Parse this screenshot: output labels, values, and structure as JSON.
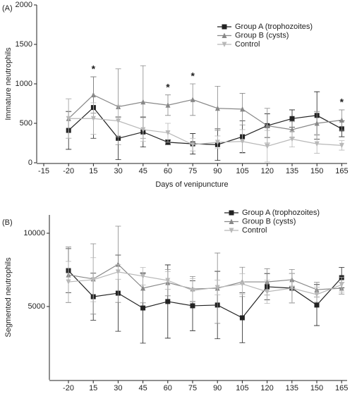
{
  "chart_data": [
    {
      "type": "line",
      "label": "(A)",
      "ylabel": "Immature neutrophils",
      "xlabel": "Days of venipuncture",
      "categories": [
        "-15",
        "-20",
        "15",
        "30",
        "45",
        "60",
        "75",
        "90",
        "105",
        "120",
        "135",
        "150",
        "165"
      ],
      "ylim": [
        0,
        2000
      ],
      "yticks": [
        0,
        500,
        1000,
        1500,
        2000
      ],
      "legend": "upper right",
      "series": [
        {
          "name": "Group A (trophozoites)",
          "color": "#222222",
          "marker": "square",
          "values": [
            null,
            410,
            700,
            310,
            390,
            260,
            240,
            230,
            330,
            470,
            560,
            600,
            430
          ],
          "errors": [
            null,
            240,
            390,
            270,
            190,
            30,
            130,
            200,
            200,
            150,
            110,
            300,
            100
          ]
        },
        {
          "name": "Group B (cysts)",
          "color": "#888888",
          "marker": "triangle",
          "values": [
            null,
            560,
            860,
            710,
            770,
            730,
            800,
            690,
            680,
            470,
            420,
            500,
            540
          ],
          "errors": [
            null,
            250,
            230,
            480,
            460,
            130,
            200,
            280,
            200,
            220,
            100,
            150,
            130
          ]
        },
        {
          "name": "Control",
          "color": "#b8b8b8",
          "marker": "triangle-down",
          "values": [
            null,
            560,
            560,
            530,
            420,
            380,
            230,
            260,
            270,
            210,
            300,
            240,
            220
          ],
          "errors": [
            null,
            250,
            200,
            200,
            150,
            120,
            80,
            80,
            150,
            200,
            100,
            120,
            60
          ]
        }
      ],
      "annotations": [
        {
          "text": "*",
          "x": "15"
        },
        {
          "text": "*",
          "x": "60"
        },
        {
          "text": "*",
          "x": "75"
        },
        {
          "text": "*",
          "x": "165"
        }
      ]
    },
    {
      "type": "line",
      "label": "(B)",
      "ylabel": "Segmented neutrophils",
      "categories": [
        "-20",
        "15",
        "30",
        "45",
        "60",
        "75",
        "90",
        "105",
        "120",
        "135",
        "150",
        "165"
      ],
      "ylim": [
        0,
        11250
      ],
      "yticks": [
        5000,
        10000
      ],
      "legend": "upper right",
      "series": [
        {
          "name": "Group A (trophozoites)",
          "color": "#222222",
          "marker": "square",
          "values": [
            7450,
            5670,
            5910,
            4900,
            5340,
            5050,
            5100,
            4230,
            6350,
            6250,
            5100,
            6970
          ],
          "errors": [
            1500,
            1600,
            2600,
            2400,
            2500,
            1700,
            2300,
            1700,
            900,
            1000,
            1400,
            700
          ]
        },
        {
          "name": "Group B (cysts)",
          "color": "#888888",
          "marker": "triangle",
          "values": [
            7160,
            6880,
            7880,
            6250,
            6630,
            6200,
            6250,
            6680,
            6680,
            6830,
            6150,
            6250
          ],
          "errors": [
            1900,
            2400,
            2600,
            1000,
            900,
            850,
            2400,
            1000,
            900,
            700,
            500,
            400
          ]
        },
        {
          "name": "Control",
          "color": "#b8b8b8",
          "marker": "triangle-down",
          "values": [
            6680,
            6830,
            7360,
            7070,
            6780,
            6100,
            6300,
            6540,
            6010,
            6250,
            5820,
            6490
          ],
          "errors": [
            1400,
            1500,
            500,
            600,
            600,
            800,
            500,
            700,
            800,
            1000,
            500,
            500
          ]
        }
      ]
    }
  ]
}
